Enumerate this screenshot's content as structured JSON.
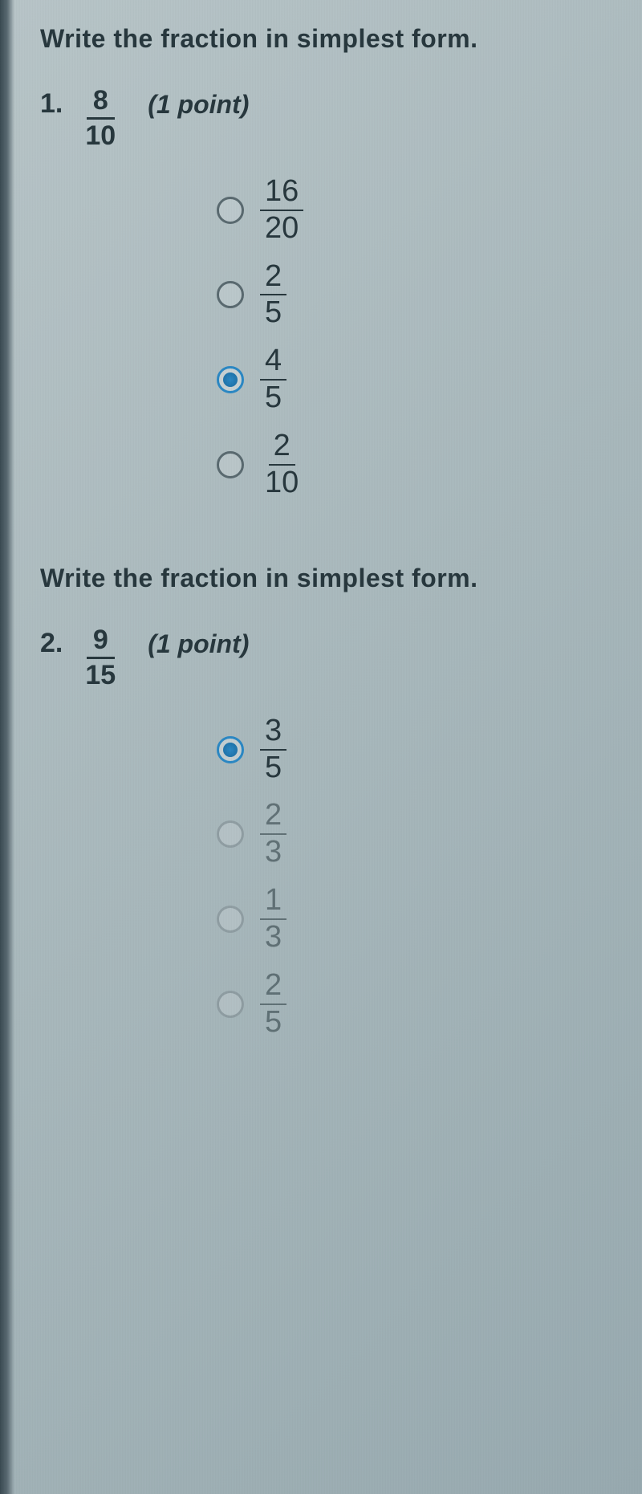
{
  "q1": {
    "instruction": "Write the fraction in simplest form.",
    "number": "1.",
    "fraction": {
      "num": "8",
      "den": "10"
    },
    "points": "(1 point)",
    "options": [
      {
        "num": "16",
        "den": "20",
        "selected": false,
        "faded": false
      },
      {
        "num": "2",
        "den": "5",
        "selected": false,
        "faded": false
      },
      {
        "num": "4",
        "den": "5",
        "selected": true,
        "faded": false
      },
      {
        "num": "2",
        "den": "10",
        "selected": false,
        "faded": false
      }
    ]
  },
  "q2": {
    "instruction": "Write the fraction in simplest form.",
    "number": "2.",
    "fraction": {
      "num": "9",
      "den": "15"
    },
    "points": "(1 point)",
    "options": [
      {
        "num": "3",
        "den": "5",
        "selected": true,
        "faded": false
      },
      {
        "num": "2",
        "den": "3",
        "selected": false,
        "faded": true
      },
      {
        "num": "1",
        "den": "3",
        "selected": false,
        "faded": true
      },
      {
        "num": "2",
        "den": "5",
        "selected": false,
        "faded": true
      }
    ]
  },
  "colors": {
    "text": "#28383e",
    "radio_border": "#5a6a70",
    "radio_selected": "#2b88c4",
    "background": "#a8b8bc"
  }
}
